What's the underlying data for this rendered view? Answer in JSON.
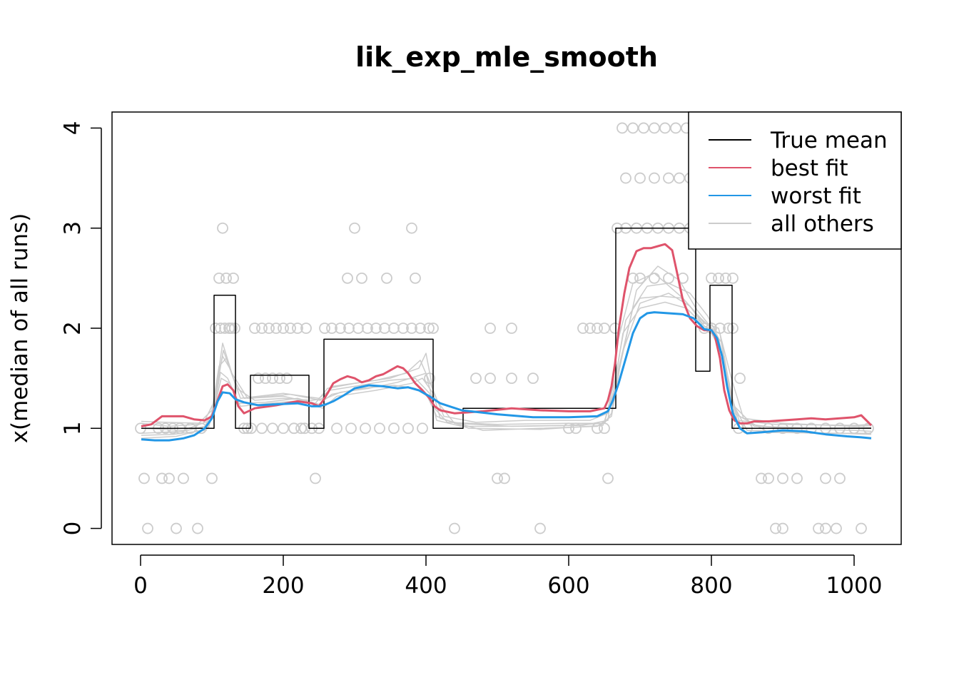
{
  "chart_data": {
    "type": "line",
    "title": "lik_exp_mle_smooth",
    "xlabel": "",
    "ylabel": "x(median of all runs)",
    "xlim": [
      -40,
      1066
    ],
    "ylim": [
      -0.16,
      4.16
    ],
    "xticks": [
      0,
      200,
      400,
      600,
      800,
      1000
    ],
    "yticks": [
      0,
      1,
      2,
      3,
      4
    ],
    "xtick_labels": [
      "0",
      "200",
      "400",
      "600",
      "800",
      "1000"
    ],
    "ytick_labels": [
      "0",
      "1",
      "2",
      "3",
      "4"
    ],
    "legend_position": "top-right",
    "legend": [
      {
        "label": "True mean",
        "color": "#000000"
      },
      {
        "label": "best fit",
        "color": "#DF536B"
      },
      {
        "label": "worst fit",
        "color": "#2297E6"
      },
      {
        "label": "all others",
        "color": "#CCCCCC"
      }
    ],
    "series": [
      {
        "name": "True mean",
        "color": "#000000",
        "width": 1.5,
        "x": [
          1,
          103,
          103,
          133,
          133,
          154,
          154,
          236,
          236,
          257,
          257,
          410,
          410,
          452,
          452,
          666,
          666,
          778,
          778,
          798,
          798,
          829,
          829,
          1024
        ],
        "y": [
          1.0,
          1.0,
          2.33,
          2.33,
          1.0,
          1.0,
          1.53,
          1.53,
          1.0,
          1.0,
          1.89,
          1.89,
          1.0,
          1.0,
          1.2,
          1.2,
          3.0,
          3.0,
          1.57,
          1.57,
          2.43,
          2.43,
          1.0,
          1.0
        ]
      },
      {
        "name": "best fit",
        "color": "#DF536B",
        "width": 3,
        "x": [
          1,
          15,
          30,
          45,
          60,
          75,
          90,
          100,
          108,
          115,
          122,
          130,
          137,
          145,
          160,
          190,
          220,
          240,
          250,
          256,
          262,
          270,
          280,
          290,
          300,
          310,
          320,
          330,
          340,
          350,
          360,
          368,
          375,
          385,
          395,
          405,
          412,
          420,
          440,
          480,
          520,
          560,
          600,
          630,
          650,
          655,
          660,
          665,
          670,
          678,
          685,
          695,
          705,
          715,
          725,
          735,
          745,
          752,
          760,
          770,
          780,
          790,
          800,
          805,
          812,
          818,
          825,
          832,
          840,
          850,
          860,
          880,
          900,
          920,
          940,
          960,
          980,
          1000,
          1010,
          1020,
          1024
        ],
        "y": [
          1.02,
          1.04,
          1.12,
          1.12,
          1.12,
          1.09,
          1.08,
          1.12,
          1.28,
          1.42,
          1.44,
          1.38,
          1.22,
          1.15,
          1.2,
          1.23,
          1.27,
          1.25,
          1.22,
          1.28,
          1.35,
          1.45,
          1.49,
          1.52,
          1.5,
          1.46,
          1.48,
          1.52,
          1.54,
          1.58,
          1.62,
          1.6,
          1.55,
          1.45,
          1.38,
          1.3,
          1.22,
          1.18,
          1.15,
          1.17,
          1.2,
          1.18,
          1.17,
          1.17,
          1.2,
          1.28,
          1.42,
          1.65,
          1.98,
          2.35,
          2.6,
          2.77,
          2.8,
          2.8,
          2.82,
          2.84,
          2.78,
          2.55,
          2.28,
          2.1,
          2.02,
          1.98,
          1.98,
          1.92,
          1.7,
          1.38,
          1.18,
          1.08,
          1.05,
          1.05,
          1.07,
          1.07,
          1.08,
          1.09,
          1.1,
          1.09,
          1.1,
          1.11,
          1.13,
          1.06,
          1.03
        ]
      },
      {
        "name": "worst fit",
        "color": "#2297E6",
        "width": 3,
        "x": [
          1,
          20,
          40,
          60,
          75,
          90,
          100,
          108,
          115,
          125,
          133,
          145,
          165,
          190,
          220,
          240,
          250,
          260,
          270,
          285,
          300,
          320,
          340,
          360,
          375,
          390,
          405,
          420,
          450,
          500,
          550,
          600,
          640,
          655,
          662,
          670,
          680,
          690,
          700,
          710,
          720,
          740,
          760,
          775,
          785,
          790,
          800,
          808,
          815,
          822,
          830,
          840,
          850,
          870,
          900,
          930,
          960,
          990,
          1010,
          1024
        ],
        "y": [
          0.89,
          0.88,
          0.88,
          0.9,
          0.93,
          1.0,
          1.1,
          1.27,
          1.36,
          1.35,
          1.29,
          1.26,
          1.23,
          1.24,
          1.25,
          1.22,
          1.22,
          1.24,
          1.27,
          1.33,
          1.4,
          1.43,
          1.42,
          1.4,
          1.41,
          1.38,
          1.32,
          1.25,
          1.18,
          1.14,
          1.11,
          1.11,
          1.12,
          1.17,
          1.28,
          1.45,
          1.7,
          1.95,
          2.1,
          2.15,
          2.16,
          2.15,
          2.14,
          2.1,
          2.03,
          1.99,
          1.98,
          1.9,
          1.72,
          1.42,
          1.15,
          1.0,
          0.95,
          0.96,
          0.98,
          0.97,
          0.94,
          0.92,
          0.91,
          0.9
        ]
      },
      {
        "name": "all others",
        "color": "#CCCCCC",
        "width": 1.5,
        "x": [
          1,
          30,
          60,
          90,
          100,
          108,
          115,
          125,
          140,
          200,
          250,
          265,
          300,
          350,
          385,
          405,
          415,
          450,
          500,
          600,
          650,
          660,
          670,
          690,
          710,
          740,
          770,
          795,
          810,
          825,
          840,
          900,
          1000,
          1024
        ],
        "y": [
          0.95,
          0.96,
          0.97,
          1.02,
          1.15,
          1.5,
          1.72,
          1.6,
          1.3,
          1.35,
          1.3,
          1.38,
          1.42,
          1.48,
          1.5,
          1.35,
          1.08,
          1.02,
          1.02,
          1.03,
          1.05,
          1.15,
          1.6,
          2.2,
          2.42,
          2.45,
          2.35,
          2.12,
          1.9,
          1.4,
          1.05,
          1.0,
          0.98,
          0.97
        ]
      },
      {
        "name": "all others",
        "color": "#CCCCCC",
        "width": 1.5,
        "x": [
          1,
          40,
          80,
          100,
          110,
          120,
          135,
          160,
          200,
          240,
          260,
          280,
          320,
          360,
          400,
          412,
          430,
          500,
          600,
          650,
          665,
          680,
          700,
          730,
          760,
          790,
          810,
          828,
          845,
          900,
          1000,
          1024
        ],
        "y": [
          1.05,
          1.02,
          1.04,
          1.18,
          1.62,
          1.7,
          1.4,
          1.28,
          1.3,
          1.28,
          1.3,
          1.36,
          1.4,
          1.46,
          1.55,
          1.2,
          1.06,
          1.04,
          1.05,
          1.05,
          1.5,
          2.08,
          2.3,
          2.32,
          2.3,
          2.05,
          2.0,
          1.5,
          1.1,
          1.05,
          1.02,
          1.03
        ]
      },
      {
        "name": "all others",
        "color": "#CCCCCC",
        "width": 1.5,
        "x": [
          1,
          50,
          95,
          105,
          113,
          125,
          140,
          180,
          230,
          255,
          275,
          330,
          380,
          395,
          410,
          420,
          480,
          560,
          640,
          660,
          675,
          700,
          740,
          770,
          790,
          812,
          826,
          850,
          950,
          1024
        ],
        "y": [
          0.9,
          0.92,
          1.0,
          1.25,
          1.5,
          1.45,
          1.22,
          1.25,
          1.28,
          1.2,
          1.32,
          1.38,
          1.45,
          1.5,
          1.35,
          1.1,
          0.98,
          1.0,
          1.02,
          1.12,
          1.75,
          2.25,
          2.35,
          2.22,
          2.02,
          1.95,
          1.3,
          0.98,
          0.95,
          0.95
        ]
      },
      {
        "name": "all others",
        "color": "#CCCCCC",
        "width": 1.5,
        "x": [
          1,
          60,
          98,
          106,
          115,
          128,
          150,
          200,
          245,
          262,
          300,
          350,
          390,
          400,
          412,
          440,
          520,
          620,
          655,
          668,
          690,
          720,
          760,
          785,
          800,
          815,
          828,
          860,
          960,
          1024
        ],
        "y": [
          1.0,
          0.98,
          1.08,
          1.4,
          1.85,
          1.55,
          1.3,
          1.32,
          1.25,
          1.4,
          1.45,
          1.5,
          1.6,
          1.75,
          1.3,
          1.05,
          1.02,
          1.03,
          1.08,
          1.85,
          2.45,
          2.55,
          2.3,
          2.1,
          2.0,
          1.85,
          1.25,
          1.02,
          1.0,
          1.01
        ]
      },
      {
        "name": "all others",
        "color": "#CCCCCC",
        "width": 1.5,
        "x": [
          1,
          45,
          92,
          103,
          112,
          122,
          138,
          175,
          220,
          250,
          268,
          310,
          355,
          385,
          402,
          415,
          460,
          560,
          648,
          662,
          676,
          700,
          735,
          765,
          782,
          800,
          818,
          832,
          880,
          980,
          1024
        ],
        "y": [
          0.93,
          0.94,
          0.98,
          1.2,
          1.56,
          1.5,
          1.25,
          1.26,
          1.3,
          1.24,
          1.34,
          1.4,
          1.43,
          1.4,
          1.32,
          1.12,
          1.0,
          0.99,
          1.03,
          1.32,
          1.95,
          2.2,
          2.26,
          2.2,
          2.08,
          1.95,
          1.72,
          1.15,
          0.96,
          0.95,
          0.94
        ]
      },
      {
        "name": "all others",
        "color": "#CCCCCC",
        "width": 1.5,
        "x": [
          1,
          35,
          88,
          104,
          116,
          130,
          145,
          210,
          252,
          270,
          330,
          372,
          392,
          406,
          425,
          470,
          540,
          630,
          655,
          672,
          695,
          725,
          755,
          780,
          805,
          820,
          836,
          890,
          1000,
          1024
        ],
        "y": [
          1.07,
          1.06,
          1.05,
          1.28,
          1.78,
          1.5,
          1.3,
          1.34,
          1.28,
          1.42,
          1.48,
          1.55,
          1.68,
          1.45,
          1.12,
          1.06,
          1.08,
          1.08,
          1.15,
          1.62,
          2.38,
          2.62,
          2.48,
          2.18,
          1.96,
          1.62,
          1.08,
          1.04,
          1.03,
          1.04
        ]
      }
    ],
    "points": {
      "color": "#CCCCCC",
      "x": [
        0,
        5,
        10,
        30,
        40,
        50,
        60,
        80,
        100,
        110,
        115,
        120,
        125,
        130,
        105,
        112,
        118,
        124,
        128,
        132,
        160,
        170,
        180,
        190,
        200,
        210,
        220,
        232,
        165,
        175,
        185,
        195,
        205,
        215,
        225,
        145,
        150,
        155,
        170,
        185,
        200,
        215,
        230,
        240,
        245,
        258,
        268,
        280,
        292,
        305,
        318,
        330,
        342,
        355,
        368,
        380,
        392,
        404,
        410,
        300,
        310,
        380,
        385,
        290,
        345,
        250,
        275,
        295,
        315,
        335,
        355,
        375,
        395,
        405,
        440,
        470,
        490,
        520,
        550,
        500,
        510,
        560,
        490,
        520,
        650,
        665,
        675,
        690,
        705,
        720,
        735,
        750,
        765,
        680,
        700,
        720,
        740,
        755,
        770,
        668,
        680,
        695,
        710,
        725,
        740,
        755,
        770,
        690,
        700,
        720,
        740,
        760,
        800,
        810,
        820,
        830,
        790,
        800,
        812,
        824,
        830,
        840,
        870,
        880,
        900,
        920,
        960,
        980,
        890,
        900,
        950,
        960,
        975,
        1010,
        838,
        850,
        880,
        900,
        920,
        940,
        960,
        980,
        1000,
        1020,
        25,
        35,
        45,
        55,
        70,
        85,
        620,
        630,
        640,
        650,
        600,
        610,
        640,
        655
      ],
      "y": [
        1,
        0.5,
        0,
        0.5,
        0.5,
        0,
        0.5,
        0,
        0.5,
        2.5,
        3,
        2.5,
        2,
        2.5,
        2,
        2,
        2,
        2,
        2,
        2,
        2,
        2,
        2,
        2,
        2,
        2,
        2,
        2,
        1.5,
        1.5,
        1.5,
        1.5,
        1.5,
        1,
        1,
        1,
        1,
        1,
        1,
        1,
        1,
        1,
        1,
        1,
        0.5,
        2,
        2,
        2,
        2,
        2,
        2,
        2,
        2,
        2,
        2,
        2,
        2,
        2,
        2,
        3,
        2.5,
        3,
        2.5,
        2.5,
        2.5,
        1,
        1,
        1,
        1,
        1,
        1,
        1,
        1,
        1.5,
        0,
        1.5,
        1.5,
        1.5,
        1.5,
        0.5,
        0.5,
        0,
        2,
        2,
        2,
        2,
        4,
        4,
        4,
        4,
        4,
        4,
        4,
        3.5,
        3.5,
        3.5,
        3.5,
        3.5,
        3.5,
        3,
        3,
        3,
        3,
        3,
        3,
        3,
        3,
        2.5,
        2.5,
        2.5,
        2.5,
        2.5,
        2.5,
        2.5,
        2.5,
        2.5,
        2,
        2,
        2,
        2,
        2,
        1.5,
        0.5,
        0.5,
        0.5,
        0.5,
        0.5,
        0.5,
        0,
        0,
        0,
        0,
        0,
        0,
        1,
        1,
        1,
        1,
        1,
        1,
        1,
        1,
        1,
        1,
        1,
        1,
        1,
        1,
        1,
        1,
        2,
        2,
        2,
        1,
        1,
        1,
        1,
        0.5
      ]
    }
  }
}
